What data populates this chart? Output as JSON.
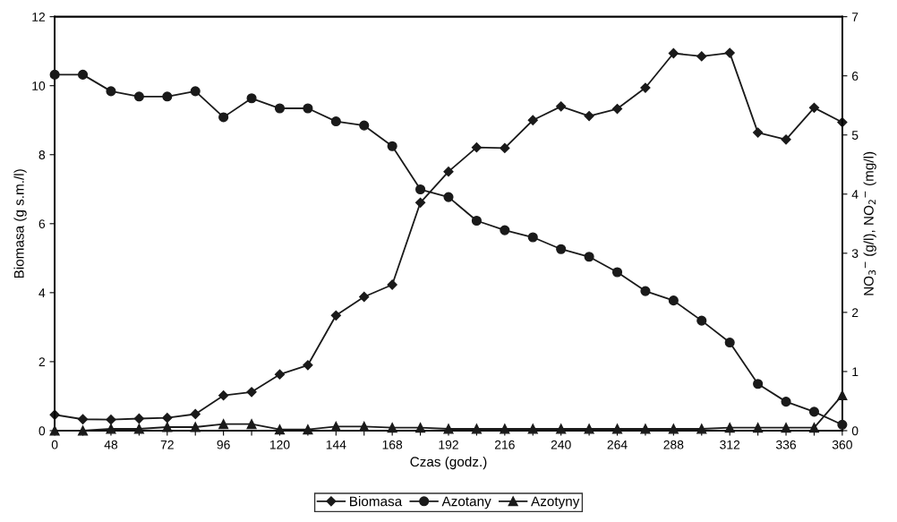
{
  "chart_data": {
    "type": "line",
    "xlabel": "Czas (godz.)",
    "ylabel": "Biomasa (g s.m./l)",
    "y2label": "NO$_{3}$$^{−}$ (g/l), NO$_{2}$$^{−}$ (mg/l)",
    "categories": [
      "0",
      null,
      "48",
      null,
      "72",
      null,
      "96",
      null,
      "120",
      null,
      "144",
      null,
      "168",
      null,
      "192",
      null,
      "216",
      null,
      "240",
      null,
      "264",
      null,
      "288",
      null,
      "312",
      null,
      "336",
      null,
      "360"
    ],
    "series": [
      {
        "name": "Biomasa",
        "color": "#1a1a1a",
        "marker": "diamond",
        "values": [
          0.46,
          0.33,
          0.32,
          0.35,
          0.37,
          0.48,
          1.02,
          1.12,
          1.63,
          1.9,
          3.34,
          3.88,
          4.23,
          6.61,
          7.51,
          8.21,
          8.19,
          9.0,
          9.4,
          9.12,
          9.33,
          9.94,
          10.94,
          10.85,
          10.95,
          8.64,
          8.44,
          9.36,
          8.94
        ]
      },
      {
        "name": "Azotany",
        "color": "#1a1a1a",
        "marker": "circle",
        "axis": "y2",
        "values": [
          6.02,
          6.02,
          5.74,
          5.65,
          5.65,
          5.74,
          5.3,
          5.62,
          5.45,
          5.45,
          5.23,
          5.16,
          4.81,
          4.08,
          3.95,
          3.55,
          3.39,
          3.27,
          3.07,
          2.94,
          2.68,
          2.36,
          2.2,
          1.86,
          1.49,
          0.79,
          0.49,
          0.32,
          0.1
        ]
      },
      {
        "name": "Azotyny",
        "color": "#1a1a1a",
        "marker": "triangle",
        "axis": "y2",
        "values": [
          0,
          0,
          0.03,
          0.03,
          0.06,
          0.06,
          0.11,
          0.11,
          0.02,
          0.02,
          0.07,
          0.07,
          0.05,
          0.05,
          0.03,
          0.03,
          0.03,
          0.03,
          0.03,
          0.03,
          0.03,
          0.03,
          0.03,
          0.03,
          0.05,
          0.05,
          0.05,
          0.05,
          0.6
        ]
      }
    ],
    "ylim": [
      0,
      12
    ],
    "yticks": [
      0,
      2,
      4,
      6,
      8,
      10,
      12
    ],
    "y2lim": [
      0,
      7
    ],
    "y2ticks": [
      0,
      1,
      2,
      3,
      4,
      5,
      6,
      7
    ],
    "grid": false,
    "legend": "bottom",
    "line_style": "solid"
  }
}
